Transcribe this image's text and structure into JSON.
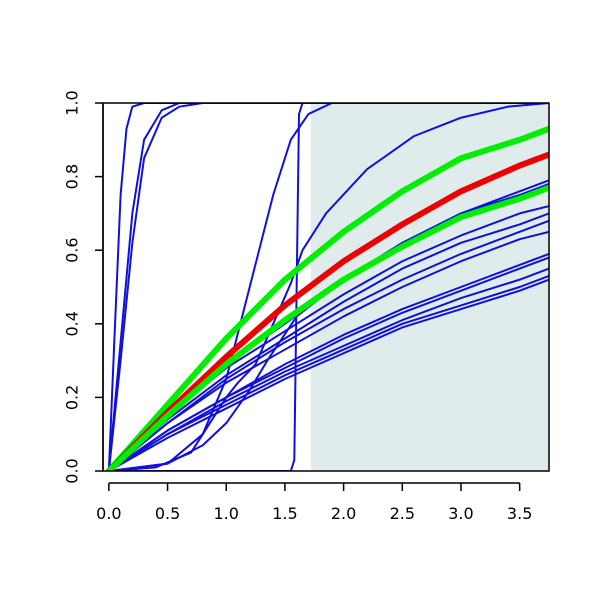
{
  "chart_data": {
    "type": "line",
    "title": "",
    "xlabel": "",
    "ylabel": "",
    "xlim": [
      -0.05,
      3.75
    ],
    "ylim": [
      0.0,
      1.0
    ],
    "grid": false,
    "x_ticks": [
      "0.0",
      "0.5",
      "1.0",
      "1.5",
      "2.0",
      "2.5",
      "3.0",
      "3.5"
    ],
    "y_ticks": [
      "0.0",
      "0.2",
      "0.4",
      "0.6",
      "0.8",
      "1.0"
    ],
    "shaded_region": {
      "x_from": 1.72,
      "x_to": 3.75,
      "color": "#e0ecec"
    },
    "colors": {
      "thin": "#1010dd",
      "green": "#00ee00",
      "red": "#ee0000",
      "shade": "#e0ecec"
    },
    "series": [
      {
        "color": "thin",
        "width": 2,
        "points": [
          [
            0,
            0
          ],
          [
            0.05,
            0.38
          ],
          [
            0.1,
            0.75
          ],
          [
            0.15,
            0.93
          ],
          [
            0.2,
            0.99
          ],
          [
            0.3,
            1.0
          ],
          [
            3.75,
            1.0
          ]
        ]
      },
      {
        "color": "thin",
        "width": 2,
        "points": [
          [
            0,
            0
          ],
          [
            0.1,
            0.35
          ],
          [
            0.2,
            0.7
          ],
          [
            0.3,
            0.9
          ],
          [
            0.45,
            0.98
          ],
          [
            0.6,
            1.0
          ],
          [
            3.75,
            1.0
          ]
        ]
      },
      {
        "color": "thin",
        "width": 2,
        "points": [
          [
            0,
            0
          ],
          [
            0.1,
            0.3
          ],
          [
            0.2,
            0.62
          ],
          [
            0.3,
            0.85
          ],
          [
            0.45,
            0.96
          ],
          [
            0.6,
            0.99
          ],
          [
            0.8,
            1.0
          ],
          [
            3.75,
            1.0
          ]
        ]
      },
      {
        "color": "thin",
        "width": 2,
        "points": [
          [
            0,
            0
          ],
          [
            1.55,
            0.0
          ],
          [
            1.58,
            0.03
          ],
          [
            1.6,
            0.5
          ],
          [
            1.62,
            0.97
          ],
          [
            1.65,
            1.0
          ],
          [
            3.75,
            1.0
          ]
        ]
      },
      {
        "color": "thin",
        "width": 2,
        "points": [
          [
            0,
            0
          ],
          [
            0.5,
            0.02
          ],
          [
            0.8,
            0.1
          ],
          [
            1.0,
            0.25
          ],
          [
            1.2,
            0.5
          ],
          [
            1.4,
            0.75
          ],
          [
            1.55,
            0.9
          ],
          [
            1.7,
            0.97
          ],
          [
            1.9,
            1.0
          ],
          [
            3.75,
            1.0
          ]
        ]
      },
      {
        "color": "thin",
        "width": 2,
        "points": [
          [
            0,
            0
          ],
          [
            0.4,
            0.01
          ],
          [
            0.7,
            0.05
          ],
          [
            0.9,
            0.15
          ],
          [
            1.0,
            0.2
          ],
          [
            1.1,
            0.24
          ],
          [
            1.25,
            0.29
          ],
          [
            1.4,
            0.4
          ],
          [
            1.55,
            0.51
          ],
          [
            1.65,
            0.6
          ],
          [
            1.85,
            0.7
          ],
          [
            2.2,
            0.82
          ],
          [
            2.6,
            0.91
          ],
          [
            3.0,
            0.96
          ],
          [
            3.4,
            0.99
          ],
          [
            3.75,
            1.0
          ]
        ]
      },
      {
        "color": "thin",
        "width": 2,
        "points": [
          [
            0,
            0
          ],
          [
            0.5,
            0.02
          ],
          [
            0.8,
            0.07
          ],
          [
            1.0,
            0.13
          ],
          [
            1.2,
            0.22
          ],
          [
            1.35,
            0.3
          ],
          [
            1.6,
            0.42
          ],
          [
            2.0,
            0.52
          ],
          [
            2.5,
            0.62
          ],
          [
            3.0,
            0.7
          ],
          [
            3.5,
            0.76
          ],
          [
            3.75,
            0.79
          ]
        ]
      },
      {
        "color": "thin",
        "width": 2,
        "points": [
          [
            0,
            0
          ],
          [
            0.5,
            0.16
          ],
          [
            1.0,
            0.29
          ],
          [
            1.5,
            0.4
          ],
          [
            2.0,
            0.52
          ],
          [
            2.5,
            0.62
          ],
          [
            3.0,
            0.7
          ],
          [
            3.5,
            0.75
          ],
          [
            3.75,
            0.78
          ]
        ]
      },
      {
        "color": "thin",
        "width": 2,
        "points": [
          [
            0,
            0
          ],
          [
            0.5,
            0.15
          ],
          [
            1.0,
            0.28
          ],
          [
            1.5,
            0.38
          ],
          [
            2.0,
            0.48
          ],
          [
            2.5,
            0.57
          ],
          [
            3.0,
            0.64
          ],
          [
            3.5,
            0.7
          ],
          [
            3.75,
            0.72
          ]
        ]
      },
      {
        "color": "thin",
        "width": 2,
        "points": [
          [
            0,
            0
          ],
          [
            0.5,
            0.14
          ],
          [
            1.0,
            0.26
          ],
          [
            1.5,
            0.36
          ],
          [
            2.0,
            0.46
          ],
          [
            2.5,
            0.55
          ],
          [
            3.0,
            0.62
          ],
          [
            3.5,
            0.67
          ],
          [
            3.75,
            0.7
          ]
        ]
      },
      {
        "color": "thin",
        "width": 2,
        "points": [
          [
            0,
            0
          ],
          [
            0.5,
            0.13
          ],
          [
            1.0,
            0.25
          ],
          [
            1.5,
            0.35
          ],
          [
            2.0,
            0.44
          ],
          [
            2.5,
            0.52
          ],
          [
            3.0,
            0.59
          ],
          [
            3.5,
            0.65
          ],
          [
            3.75,
            0.68
          ]
        ]
      },
      {
        "color": "thin",
        "width": 2,
        "points": [
          [
            0,
            0
          ],
          [
            0.5,
            0.13
          ],
          [
            1.0,
            0.24
          ],
          [
            1.5,
            0.33
          ],
          [
            2.0,
            0.42
          ],
          [
            2.5,
            0.5
          ],
          [
            3.0,
            0.57
          ],
          [
            3.5,
            0.63
          ],
          [
            3.75,
            0.65
          ]
        ]
      },
      {
        "color": "thin",
        "width": 2,
        "points": [
          [
            0,
            0
          ],
          [
            0.5,
            0.11
          ],
          [
            1.0,
            0.2
          ],
          [
            1.5,
            0.29
          ],
          [
            2.0,
            0.37
          ],
          [
            2.5,
            0.44
          ],
          [
            3.0,
            0.5
          ],
          [
            3.5,
            0.56
          ],
          [
            3.75,
            0.59
          ]
        ]
      },
      {
        "color": "thin",
        "width": 2,
        "points": [
          [
            0,
            0
          ],
          [
            0.5,
            0.11
          ],
          [
            1.0,
            0.2
          ],
          [
            1.5,
            0.28
          ],
          [
            2.0,
            0.36
          ],
          [
            2.5,
            0.43
          ],
          [
            3.0,
            0.49
          ],
          [
            3.5,
            0.55
          ],
          [
            3.75,
            0.58
          ]
        ]
      },
      {
        "color": "thin",
        "width": 2,
        "points": [
          [
            0,
            0
          ],
          [
            0.5,
            0.1
          ],
          [
            1.0,
            0.19
          ],
          [
            1.5,
            0.27
          ],
          [
            2.0,
            0.34
          ],
          [
            2.5,
            0.41
          ],
          [
            3.0,
            0.47
          ],
          [
            3.5,
            0.52
          ],
          [
            3.75,
            0.55
          ]
        ]
      },
      {
        "color": "thin",
        "width": 2,
        "points": [
          [
            0,
            0
          ],
          [
            0.5,
            0.1
          ],
          [
            1.0,
            0.18
          ],
          [
            1.5,
            0.26
          ],
          [
            2.0,
            0.33
          ],
          [
            2.5,
            0.4
          ],
          [
            3.0,
            0.45
          ],
          [
            3.5,
            0.5
          ],
          [
            3.75,
            0.53
          ]
        ]
      },
      {
        "color": "thin",
        "width": 2,
        "points": [
          [
            0,
            0
          ],
          [
            0.5,
            0.09
          ],
          [
            1.0,
            0.17
          ],
          [
            1.5,
            0.25
          ],
          [
            2.0,
            0.32
          ],
          [
            2.5,
            0.39
          ],
          [
            3.0,
            0.44
          ],
          [
            3.5,
            0.49
          ],
          [
            3.75,
            0.52
          ]
        ]
      },
      {
        "color": "green",
        "width": 6,
        "points": [
          [
            0,
            0
          ],
          [
            0.5,
            0.18
          ],
          [
            1.0,
            0.36
          ],
          [
            1.5,
            0.52
          ],
          [
            2.0,
            0.65
          ],
          [
            2.5,
            0.76
          ],
          [
            3.0,
            0.85
          ],
          [
            3.5,
            0.9
          ],
          [
            3.75,
            0.93
          ]
        ]
      },
      {
        "color": "red",
        "width": 6,
        "points": [
          [
            0,
            0
          ],
          [
            0.5,
            0.16
          ],
          [
            1.0,
            0.31
          ],
          [
            1.5,
            0.45
          ],
          [
            2.0,
            0.57
          ],
          [
            2.5,
            0.67
          ],
          [
            3.0,
            0.76
          ],
          [
            3.5,
            0.83
          ],
          [
            3.75,
            0.86
          ]
        ]
      },
      {
        "color": "green",
        "width": 6,
        "points": [
          [
            0,
            0
          ],
          [
            0.5,
            0.15
          ],
          [
            1.0,
            0.29
          ],
          [
            1.5,
            0.41
          ],
          [
            2.0,
            0.52
          ],
          [
            2.5,
            0.61
          ],
          [
            3.0,
            0.69
          ],
          [
            3.5,
            0.74
          ],
          [
            3.75,
            0.77
          ]
        ]
      }
    ]
  }
}
